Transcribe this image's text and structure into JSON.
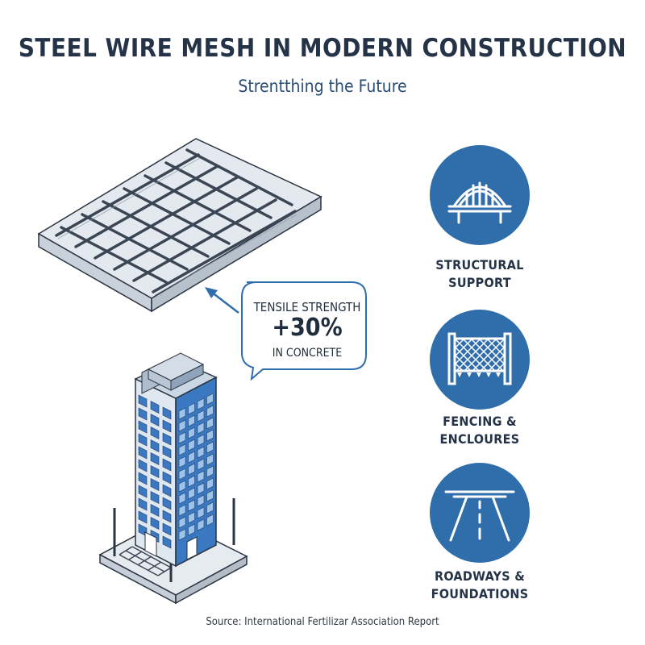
{
  "header": {
    "title": "STEEL WIRE MESH IN MODERN CONSTRUCTION",
    "subtitle": "Strentthing the Future"
  },
  "callout": {
    "line1": "TENSILE STRENGTH",
    "value": "+30%",
    "line3": "IN CONCRETE"
  },
  "applications": [
    {
      "label_line1": "STRUCTURAL",
      "label_line2": "SUPPORT",
      "icon": "bridge-icon"
    },
    {
      "label_line1": "FENCING &",
      "label_line2": "ENCLOURES",
      "icon": "fence-icon"
    },
    {
      "label_line1": "ROADWAYS &",
      "label_line2": "FOUNDATIONS",
      "icon": "road-icon"
    }
  ],
  "footer": {
    "source": "Source: International Fertilizar Association Report"
  },
  "colors": {
    "accent": "#2f6dab",
    "title": "#243347",
    "slab": "#dde3ea",
    "building": "#3a78c2"
  }
}
